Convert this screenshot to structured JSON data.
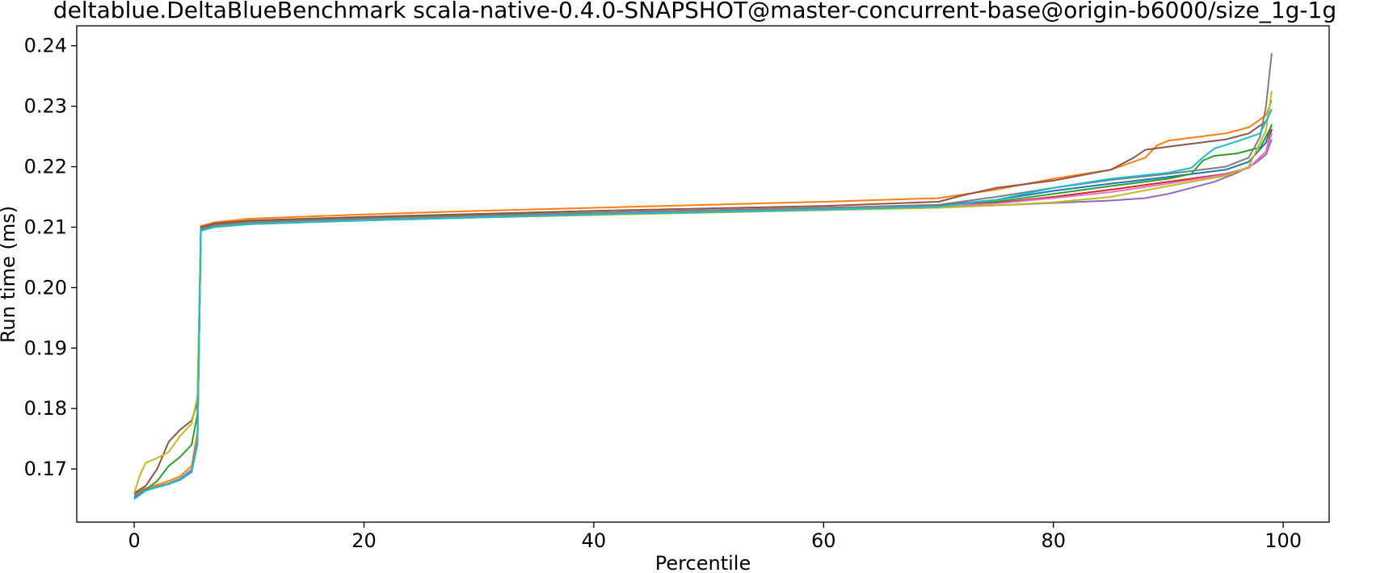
{
  "chart_data": {
    "type": "line",
    "title": "deltablue.DeltaBlueBenchmark scala-native-0.4.0-SNAPSHOT@master-concurrent-base@origin-b6000/size_1g-1g",
    "xlabel": "Percentile",
    "ylabel": "Run time (ms)",
    "xlim": [
      -5,
      104
    ],
    "ylim": [
      0.1612,
      0.2433
    ],
    "xticks": [
      0,
      20,
      40,
      60,
      80,
      100
    ],
    "xtick_labels": [
      "0",
      "20",
      "40",
      "60",
      "80",
      "100"
    ],
    "yticks": [
      0.17,
      0.18,
      0.19,
      0.2,
      0.21,
      0.22,
      0.23,
      0.24
    ],
    "ytick_labels": [
      "0.17",
      "0.18",
      "0.19",
      "0.20",
      "0.21",
      "0.22",
      "0.23",
      "0.24"
    ],
    "grid": false,
    "legend": "none",
    "series": [
      {
        "color": "#1f77b4",
        "points": [
          [
            0,
            0.1652
          ],
          [
            1,
            0.1665
          ],
          [
            2,
            0.167
          ],
          [
            3,
            0.1675
          ],
          [
            4,
            0.1682
          ],
          [
            5,
            0.1695
          ],
          [
            5.5,
            0.174
          ],
          [
            5.8,
            0.2095
          ],
          [
            7,
            0.21
          ],
          [
            10,
            0.2105
          ],
          [
            20,
            0.2112
          ],
          [
            30,
            0.2118
          ],
          [
            40,
            0.2122
          ],
          [
            50,
            0.2127
          ],
          [
            60,
            0.2131
          ],
          [
            70,
            0.2136
          ],
          [
            75,
            0.2145
          ],
          [
            80,
            0.216
          ],
          [
            85,
            0.2172
          ],
          [
            90,
            0.2183
          ],
          [
            95,
            0.2195
          ],
          [
            97,
            0.2208
          ],
          [
            98.5,
            0.224
          ],
          [
            99,
            0.227
          ]
        ]
      },
      {
        "color": "#ff7f0e",
        "points": [
          [
            0,
            0.166
          ],
          [
            1,
            0.1668
          ],
          [
            2,
            0.1674
          ],
          [
            3,
            0.168
          ],
          [
            4,
            0.1688
          ],
          [
            5,
            0.1705
          ],
          [
            5.5,
            0.176
          ],
          [
            5.8,
            0.2102
          ],
          [
            7,
            0.2108
          ],
          [
            10,
            0.2114
          ],
          [
            20,
            0.2121
          ],
          [
            30,
            0.2127
          ],
          [
            40,
            0.2132
          ],
          [
            50,
            0.2137
          ],
          [
            60,
            0.2142
          ],
          [
            70,
            0.2148
          ],
          [
            75,
            0.2162
          ],
          [
            80,
            0.218
          ],
          [
            85,
            0.2195
          ],
          [
            88,
            0.2215
          ],
          [
            89,
            0.2235
          ],
          [
            90,
            0.2243
          ],
          [
            95,
            0.2255
          ],
          [
            97,
            0.2265
          ],
          [
            98.5,
            0.2285
          ],
          [
            99,
            0.231
          ]
        ]
      },
      {
        "color": "#2ca02c",
        "points": [
          [
            0,
            0.1658
          ],
          [
            1,
            0.1666
          ],
          [
            2,
            0.168
          ],
          [
            3,
            0.1705
          ],
          [
            4,
            0.172
          ],
          [
            5,
            0.174
          ],
          [
            5.5,
            0.179
          ],
          [
            5.8,
            0.2098
          ],
          [
            7,
            0.2104
          ],
          [
            10,
            0.2109
          ],
          [
            20,
            0.2115
          ],
          [
            30,
            0.212
          ],
          [
            40,
            0.2124
          ],
          [
            50,
            0.2128
          ],
          [
            60,
            0.2132
          ],
          [
            70,
            0.2136
          ],
          [
            75,
            0.2142
          ],
          [
            80,
            0.2155
          ],
          [
            85,
            0.2168
          ],
          [
            90,
            0.218
          ],
          [
            92,
            0.2188
          ],
          [
            93,
            0.221
          ],
          [
            94,
            0.2218
          ],
          [
            96,
            0.2222
          ],
          [
            98,
            0.2232
          ],
          [
            99,
            0.2268
          ]
        ]
      },
      {
        "color": "#d62728",
        "points": [
          [
            0,
            0.1655
          ],
          [
            1,
            0.1665
          ],
          [
            2,
            0.1671
          ],
          [
            3,
            0.1676
          ],
          [
            4,
            0.1684
          ],
          [
            5,
            0.1698
          ],
          [
            5.5,
            0.1745
          ],
          [
            5.8,
            0.2096
          ],
          [
            7,
            0.2102
          ],
          [
            10,
            0.2107
          ],
          [
            20,
            0.2113
          ],
          [
            30,
            0.2118
          ],
          [
            40,
            0.2123
          ],
          [
            50,
            0.2127
          ],
          [
            60,
            0.2131
          ],
          [
            70,
            0.2135
          ],
          [
            75,
            0.214
          ],
          [
            80,
            0.215
          ],
          [
            85,
            0.2162
          ],
          [
            90,
            0.2175
          ],
          [
            95,
            0.2188
          ],
          [
            97,
            0.2198
          ],
          [
            98.5,
            0.2225
          ],
          [
            99,
            0.2262
          ]
        ]
      },
      {
        "color": "#9467bd",
        "points": [
          [
            0,
            0.1657
          ],
          [
            1,
            0.1665
          ],
          [
            2,
            0.167
          ],
          [
            3,
            0.1675
          ],
          [
            4,
            0.1683
          ],
          [
            5,
            0.1696
          ],
          [
            5.5,
            0.1742
          ],
          [
            5.8,
            0.2095
          ],
          [
            7,
            0.2101
          ],
          [
            10,
            0.2106
          ],
          [
            20,
            0.2112
          ],
          [
            30,
            0.2117
          ],
          [
            40,
            0.2121
          ],
          [
            50,
            0.2125
          ],
          [
            60,
            0.2129
          ],
          [
            70,
            0.2133
          ],
          [
            75,
            0.2136
          ],
          [
            80,
            0.214
          ],
          [
            85,
            0.2144
          ],
          [
            88,
            0.2148
          ],
          [
            90,
            0.2155
          ],
          [
            92,
            0.2165
          ],
          [
            94,
            0.2175
          ],
          [
            96,
            0.219
          ],
          [
            97.5,
            0.2205
          ],
          [
            98.5,
            0.222
          ],
          [
            99,
            0.2245
          ]
        ]
      },
      {
        "color": "#8c564b",
        "points": [
          [
            0,
            0.166
          ],
          [
            1,
            0.1672
          ],
          [
            2,
            0.17
          ],
          [
            3,
            0.1745
          ],
          [
            4,
            0.1765
          ],
          [
            5,
            0.178
          ],
          [
            5.5,
            0.181
          ],
          [
            5.8,
            0.21
          ],
          [
            7,
            0.2106
          ],
          [
            10,
            0.2111
          ],
          [
            20,
            0.2117
          ],
          [
            30,
            0.2122
          ],
          [
            40,
            0.2127
          ],
          [
            50,
            0.2131
          ],
          [
            60,
            0.2135
          ],
          [
            70,
            0.2142
          ],
          [
            72,
            0.2152
          ],
          [
            75,
            0.2165
          ],
          [
            80,
            0.2177
          ],
          [
            85,
            0.2195
          ],
          [
            87,
            0.2215
          ],
          [
            88,
            0.2228
          ],
          [
            90,
            0.2233
          ],
          [
            95,
            0.2245
          ],
          [
            97,
            0.2255
          ],
          [
            98.5,
            0.2275
          ],
          [
            99,
            0.2295
          ]
        ]
      },
      {
        "color": "#e377c2",
        "points": [
          [
            0,
            0.1656
          ],
          [
            1,
            0.1665
          ],
          [
            2,
            0.167
          ],
          [
            3,
            0.1675
          ],
          [
            4,
            0.1683
          ],
          [
            5,
            0.1697
          ],
          [
            5.5,
            0.1743
          ],
          [
            5.8,
            0.2096
          ],
          [
            7,
            0.2102
          ],
          [
            10,
            0.2107
          ],
          [
            20,
            0.2113
          ],
          [
            30,
            0.2118
          ],
          [
            40,
            0.2122
          ],
          [
            50,
            0.2126
          ],
          [
            60,
            0.213
          ],
          [
            70,
            0.2134
          ],
          [
            75,
            0.2139
          ],
          [
            80,
            0.2148
          ],
          [
            85,
            0.2158
          ],
          [
            90,
            0.2172
          ],
          [
            95,
            0.2187
          ],
          [
            97,
            0.2198
          ],
          [
            98.5,
            0.2225
          ],
          [
            99,
            0.2255
          ]
        ]
      },
      {
        "color": "#7f7f7f",
        "points": [
          [
            0,
            0.1655
          ],
          [
            1,
            0.1665
          ],
          [
            2,
            0.1671
          ],
          [
            3,
            0.1676
          ],
          [
            4,
            0.1684
          ],
          [
            5,
            0.1699
          ],
          [
            5.5,
            0.1748
          ],
          [
            5.8,
            0.2097
          ],
          [
            7,
            0.2103
          ],
          [
            10,
            0.2108
          ],
          [
            20,
            0.2114
          ],
          [
            30,
            0.2119
          ],
          [
            40,
            0.2124
          ],
          [
            50,
            0.2128
          ],
          [
            60,
            0.2132
          ],
          [
            70,
            0.2137
          ],
          [
            75,
            0.215
          ],
          [
            80,
            0.2165
          ],
          [
            85,
            0.2178
          ],
          [
            90,
            0.2188
          ],
          [
            95,
            0.22
          ],
          [
            97,
            0.2215
          ],
          [
            98,
            0.225
          ],
          [
            98.5,
            0.23
          ],
          [
            99,
            0.2388
          ]
        ]
      },
      {
        "color": "#bcbd22",
        "points": [
          [
            0,
            0.166
          ],
          [
            0.5,
            0.169
          ],
          [
            1,
            0.171
          ],
          [
            2,
            0.1718
          ],
          [
            3,
            0.1728
          ],
          [
            4,
            0.1755
          ],
          [
            5,
            0.1775
          ],
          [
            5.5,
            0.182
          ],
          [
            5.8,
            0.2094
          ],
          [
            7,
            0.21
          ],
          [
            10,
            0.2105
          ],
          [
            20,
            0.2111
          ],
          [
            30,
            0.2116
          ],
          [
            40,
            0.212
          ],
          [
            50,
            0.2124
          ],
          [
            60,
            0.2128
          ],
          [
            70,
            0.2132
          ],
          [
            75,
            0.2136
          ],
          [
            80,
            0.2141
          ],
          [
            85,
            0.215
          ],
          [
            90,
            0.2168
          ],
          [
            95,
            0.2185
          ],
          [
            97,
            0.22
          ],
          [
            98.5,
            0.226
          ],
          [
            99,
            0.2325
          ]
        ]
      },
      {
        "color": "#17becf",
        "points": [
          [
            0,
            0.165
          ],
          [
            1,
            0.1664
          ],
          [
            2,
            0.167
          ],
          [
            3,
            0.1675
          ],
          [
            4,
            0.1683
          ],
          [
            5,
            0.1697
          ],
          [
            5.5,
            0.1745
          ],
          [
            5.8,
            0.2094
          ],
          [
            7,
            0.21
          ],
          [
            10,
            0.2105
          ],
          [
            20,
            0.2111
          ],
          [
            30,
            0.2116
          ],
          [
            40,
            0.2121
          ],
          [
            50,
            0.2125
          ],
          [
            60,
            0.2129
          ],
          [
            70,
            0.2134
          ],
          [
            75,
            0.2145
          ],
          [
            80,
            0.2165
          ],
          [
            85,
            0.218
          ],
          [
            90,
            0.219
          ],
          [
            92,
            0.2198
          ],
          [
            93,
            0.2215
          ],
          [
            94,
            0.223
          ],
          [
            96,
            0.2242
          ],
          [
            98,
            0.2255
          ],
          [
            99,
            0.2295
          ]
        ]
      }
    ]
  }
}
